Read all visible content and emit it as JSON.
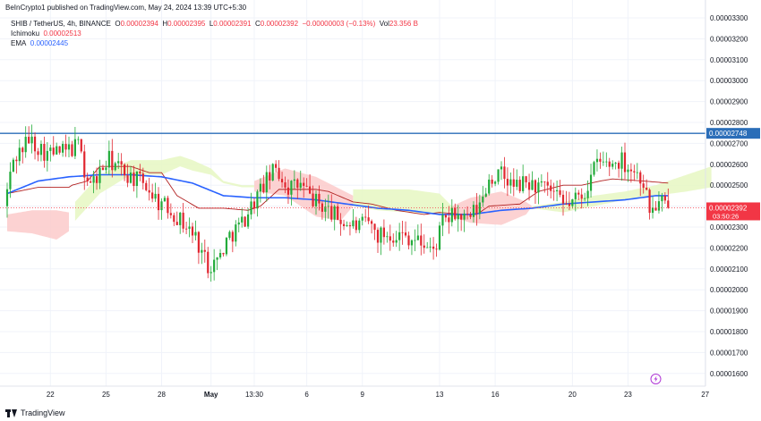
{
  "header": {
    "published": "BeInCrypto1 published on TradingView.com, May 24, 2024 13:39 UTC+5:30"
  },
  "legend": {
    "symbol": "SHIB / TetherUS, 4h, BINANCE",
    "o_label": "O",
    "o": "0.00002394",
    "h_label": "H",
    "h": "0.00002395",
    "l_label": "L",
    "l": "0.00002391",
    "c_label": "C",
    "c": "0.00002392",
    "chg": "−0.00000003 (−0.13%)",
    "vol_label": "Vol",
    "vol": "23.356 B",
    "ichimoku_label": "Ichimoku",
    "ichimoku": "0.00002513",
    "ema_label": "EMA",
    "ema": "0.00002445"
  },
  "footer": {
    "brand": "TradingView"
  },
  "colors": {
    "up": "#089981",
    "upCandle": "#22ab3a",
    "down": "#e0262f",
    "ema": "#2962ff",
    "hline": "#2a6db8",
    "cloudBull": "#e6f7c2",
    "cloudBear": "#fbcaca",
    "kijun": "#b22222",
    "axisText": "#131722",
    "priceTag": "#f23645"
  },
  "chart_data": {
    "type": "candlestick",
    "timeframe": "4h",
    "y_axis": {
      "range": [
        1.55e-05,
        3.3e-05
      ],
      "ticks": [
        "0.00003300",
        "0.00003200",
        "0.00003100",
        "0.00003000",
        "0.00002900",
        "0.00002800",
        "0.00002700",
        "0.00002600",
        "0.00002500",
        "0.00002400",
        "0.00002300",
        "0.00002200",
        "0.00002100",
        "0.00002000",
        "0.00001900",
        "0.00001800",
        "0.00001700",
        "0.00001600"
      ]
    },
    "x_axis": {
      "labels": [
        {
          "text": "22",
          "bar": 14
        },
        {
          "text": "25",
          "bar": 32
        },
        {
          "text": "28",
          "bar": 50
        },
        {
          "text": "May",
          "bar": 66
        },
        {
          "text": "13:30",
          "bar": 80
        },
        {
          "text": "6",
          "bar": 97
        },
        {
          "text": "9",
          "bar": 115
        },
        {
          "text": "13",
          "bar": 140
        },
        {
          "text": "16",
          "bar": 158
        },
        {
          "text": "20",
          "bar": 183
        },
        {
          "text": "23",
          "bar": 201
        },
        {
          "text": "27",
          "bar": 226
        }
      ]
    },
    "total_bars": 228,
    "horizontal_line": {
      "value": "0.00002748"
    },
    "last_price": {
      "value": "0.00002392",
      "countdown": "03:50:26"
    },
    "price_anchors": [
      [
        0,
        2.4e-05
      ],
      [
        3,
        2.62e-05
      ],
      [
        8,
        2.72e-05
      ],
      [
        14,
        2.65e-05
      ],
      [
        20,
        2.66e-05
      ],
      [
        25,
        2.7e-05
      ],
      [
        26,
        2.55e-05
      ],
      [
        28,
        2.5e-05
      ],
      [
        34,
        2.62e-05
      ],
      [
        40,
        2.55e-05
      ],
      [
        46,
        2.5e-05
      ],
      [
        50,
        2.42e-05
      ],
      [
        54,
        2.38e-05
      ],
      [
        58,
        2.32e-05
      ],
      [
        62,
        2.25e-05
      ],
      [
        66,
        2.12e-05
      ],
      [
        69,
        2.14e-05
      ],
      [
        73,
        2.26e-05
      ],
      [
        77,
        2.32e-05
      ],
      [
        80,
        2.4e-05
      ],
      [
        84,
        2.5e-05
      ],
      [
        88,
        2.58e-05
      ],
      [
        92,
        2.49e-05
      ],
      [
        96,
        2.5e-05
      ],
      [
        100,
        2.43e-05
      ],
      [
        105,
        2.38e-05
      ],
      [
        110,
        2.32e-05
      ],
      [
        115,
        2.3e-05
      ],
      [
        118,
        2.32e-05
      ],
      [
        121,
        2.26e-05
      ],
      [
        124,
        2.27e-05
      ],
      [
        130,
        2.26e-05
      ],
      [
        136,
        2.22e-05
      ],
      [
        139,
        2.18e-05
      ],
      [
        142,
        2.32e-05
      ],
      [
        146,
        2.36e-05
      ],
      [
        150,
        2.33e-05
      ],
      [
        154,
        2.4e-05
      ],
      [
        157,
        2.53e-05
      ],
      [
        161,
        2.55e-05
      ],
      [
        165,
        2.49e-05
      ],
      [
        169,
        2.51e-05
      ],
      [
        173,
        2.49e-05
      ],
      [
        177,
        2.47e-05
      ],
      [
        181,
        2.4e-05
      ],
      [
        184,
        2.42e-05
      ],
      [
        188,
        2.47e-05
      ],
      [
        192,
        2.61e-05
      ],
      [
        196,
        2.6e-05
      ],
      [
        200,
        2.62e-05
      ],
      [
        204,
        2.57e-05
      ],
      [
        207,
        2.52e-05
      ],
      [
        209,
        2.38e-05
      ],
      [
        211,
        2.4e-05
      ],
      [
        213,
        2.42e-05
      ],
      [
        214,
        2.39e-05
      ]
    ],
    "ema_anchors": [
      [
        0,
        2.46e-05
      ],
      [
        10,
        2.52e-05
      ],
      [
        20,
        2.54e-05
      ],
      [
        30,
        2.55e-05
      ],
      [
        40,
        2.55e-05
      ],
      [
        50,
        2.54e-05
      ],
      [
        60,
        2.51e-05
      ],
      [
        70,
        2.45e-05
      ],
      [
        80,
        2.44e-05
      ],
      [
        90,
        2.44e-05
      ],
      [
        100,
        2.43e-05
      ],
      [
        110,
        2.41e-05
      ],
      [
        120,
        2.39e-05
      ],
      [
        130,
        2.38e-05
      ],
      [
        140,
        2.36e-05
      ],
      [
        150,
        2.36e-05
      ],
      [
        160,
        2.38e-05
      ],
      [
        170,
        2.39e-05
      ],
      [
        180,
        2.41e-05
      ],
      [
        190,
        2.42e-05
      ],
      [
        200,
        2.43e-05
      ],
      [
        210,
        2.45e-05
      ],
      [
        214,
        2.45e-05
      ]
    ],
    "kijun_anchors": [
      [
        0,
        2.46e-05
      ],
      [
        10,
        2.49e-05
      ],
      [
        20,
        2.49e-05
      ],
      [
        21,
        2.5e-05
      ],
      [
        26,
        2.52e-05
      ],
      [
        30,
        2.59e-05
      ],
      [
        40,
        2.59e-05
      ],
      [
        46,
        2.56e-05
      ],
      [
        50,
        2.56e-05
      ],
      [
        55,
        2.45e-05
      ],
      [
        62,
        2.39e-05
      ],
      [
        70,
        2.39e-05
      ],
      [
        78,
        2.38e-05
      ],
      [
        82,
        2.4e-05
      ],
      [
        88,
        2.48e-05
      ],
      [
        94,
        2.48e-05
      ],
      [
        100,
        2.48e-05
      ],
      [
        104,
        2.47e-05
      ],
      [
        112,
        2.42e-05
      ],
      [
        118,
        2.41e-05
      ],
      [
        126,
        2.38e-05
      ],
      [
        135,
        2.36e-05
      ],
      [
        140,
        2.37e-05
      ],
      [
        148,
        2.36e-05
      ],
      [
        152,
        2.36e-05
      ],
      [
        156,
        2.4e-05
      ],
      [
        166,
        2.41e-05
      ],
      [
        172,
        2.47e-05
      ],
      [
        180,
        2.5e-05
      ],
      [
        186,
        2.5e-05
      ],
      [
        192,
        2.52e-05
      ],
      [
        196,
        2.53e-05
      ],
      [
        206,
        2.52e-05
      ],
      [
        214,
        2.51e-05
      ]
    ],
    "cloud_segments": [
      {
        "sentiment": "bear",
        "top": [
          [
            0,
            2.36e-05
          ],
          [
            8,
            2.38e-05
          ],
          [
            16,
            2.38e-05
          ],
          [
            20,
            2.37e-05
          ]
        ],
        "bottom": [
          [
            0,
            2.28e-05
          ],
          [
            8,
            2.27e-05
          ],
          [
            16,
            2.24e-05
          ],
          [
            20,
            2.28e-05
          ]
        ]
      },
      {
        "sentiment": "bull",
        "top": [
          [
            22,
            2.42e-05
          ],
          [
            30,
            2.55e-05
          ],
          [
            40,
            2.62e-05
          ],
          [
            50,
            2.62e-05
          ],
          [
            56,
            2.64e-05
          ],
          [
            60,
            2.62e-05
          ],
          [
            66,
            2.58e-05
          ],
          [
            70,
            2.52e-05
          ],
          [
            76,
            2.5e-05
          ],
          [
            80,
            2.5e-05
          ]
        ],
        "bottom": [
          [
            22,
            2.33e-05
          ],
          [
            30,
            2.46e-05
          ],
          [
            40,
            2.55e-05
          ],
          [
            50,
            2.55e-05
          ],
          [
            56,
            2.59e-05
          ],
          [
            60,
            2.57e-05
          ],
          [
            66,
            2.55e-05
          ],
          [
            70,
            2.51e-05
          ],
          [
            76,
            2.49e-05
          ],
          [
            80,
            2.49e-05
          ]
        ]
      },
      {
        "sentiment": "bear",
        "top": [
          [
            80,
            2.52e-05
          ],
          [
            90,
            2.58e-05
          ],
          [
            100,
            2.54e-05
          ],
          [
            108,
            2.48e-05
          ],
          [
            112,
            2.45e-05
          ]
        ],
        "bottom": [
          [
            80,
            2.47e-05
          ],
          [
            90,
            2.45e-05
          ],
          [
            100,
            2.35e-05
          ],
          [
            108,
            2.33e-05
          ],
          [
            112,
            2.4e-05
          ]
        ]
      },
      {
        "sentiment": "bull",
        "top": [
          [
            112,
            2.48e-05
          ],
          [
            120,
            2.48e-05
          ],
          [
            130,
            2.48e-05
          ],
          [
            140,
            2.46e-05
          ],
          [
            144,
            2.4e-05
          ]
        ],
        "bottom": [
          [
            112,
            2.4e-05
          ],
          [
            120,
            2.38e-05
          ],
          [
            130,
            2.37e-05
          ],
          [
            140,
            2.36e-05
          ],
          [
            144,
            2.38e-05
          ]
        ]
      },
      {
        "sentiment": "bear",
        "top": [
          [
            144,
            2.4e-05
          ],
          [
            150,
            2.44e-05
          ],
          [
            160,
            2.47e-05
          ],
          [
            168,
            2.42e-05
          ],
          [
            170,
            2.4e-05
          ]
        ],
        "bottom": [
          [
            144,
            2.35e-05
          ],
          [
            150,
            2.32e-05
          ],
          [
            160,
            2.31e-05
          ],
          [
            168,
            2.36e-05
          ],
          [
            170,
            2.4e-05
          ]
        ]
      },
      {
        "sentiment": "bull",
        "top": [
          [
            170,
            2.4e-05
          ],
          [
            180,
            2.42e-05
          ],
          [
            190,
            2.45e-05
          ],
          [
            200,
            2.47e-05
          ],
          [
            210,
            2.5e-05
          ],
          [
            220,
            2.55e-05
          ],
          [
            228,
            2.59e-05
          ]
        ],
        "bottom": [
          [
            170,
            2.39e-05
          ],
          [
            180,
            2.37e-05
          ],
          [
            190,
            2.4e-05
          ],
          [
            200,
            2.43e-05
          ],
          [
            210,
            2.45e-05
          ],
          [
            220,
            2.47e-05
          ],
          [
            228,
            2.49e-05
          ]
        ]
      }
    ]
  }
}
